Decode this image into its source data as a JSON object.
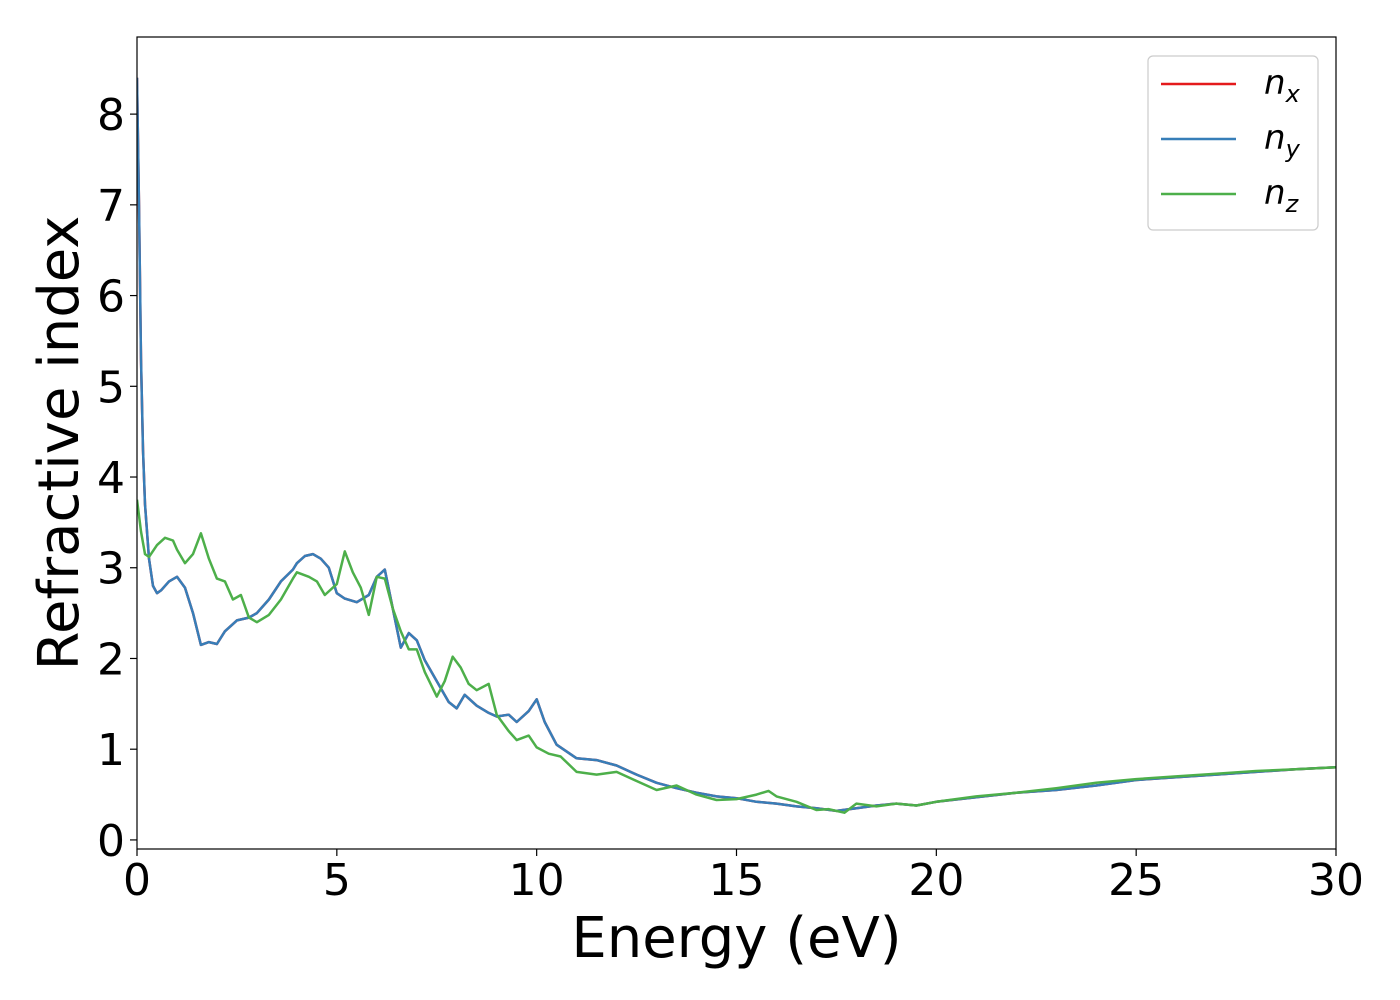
{
  "chart_data": {
    "type": "line",
    "xlabel": "Energy (eV)",
    "ylabel": "Refractive index",
    "xlim": [
      0,
      30
    ],
    "ylim": [
      -0.1,
      8.85
    ],
    "xticks": [
      0,
      5,
      10,
      15,
      20,
      25,
      30
    ],
    "yticks": [
      0,
      1,
      2,
      3,
      4,
      5,
      6,
      7,
      8
    ],
    "grid": false,
    "legend_position": "top-right",
    "series": [
      {
        "name": "n_x",
        "legend_base": "n",
        "legend_sub": "x",
        "color": "#e41a1c",
        "x": [
          0.0,
          0.05,
          0.1,
          0.15,
          0.2,
          0.3,
          0.4,
          0.5,
          0.6,
          0.8,
          1.0,
          1.2,
          1.4,
          1.6,
          1.8,
          2.0,
          2.2,
          2.5,
          2.8,
          3.0,
          3.3,
          3.6,
          3.9,
          4.0,
          4.2,
          4.4,
          4.6,
          4.8,
          5.0,
          5.2,
          5.5,
          5.8,
          6.0,
          6.2,
          6.4,
          6.6,
          6.8,
          7.0,
          7.2,
          7.5,
          7.8,
          8.0,
          8.2,
          8.5,
          8.8,
          9.0,
          9.3,
          9.5,
          9.8,
          10.0,
          10.2,
          10.5,
          11.0,
          11.5,
          12.0,
          12.5,
          13.0,
          13.5,
          14.0,
          14.5,
          15.0,
          15.5,
          16.0,
          16.5,
          17.0,
          17.5,
          18.0,
          18.5,
          19.0,
          19.5,
          20.0,
          21.0,
          22.0,
          23.0,
          24.0,
          25.0,
          26.0,
          27.0,
          28.0,
          29.0,
          30.0
        ],
        "y": [
          8.4,
          7.0,
          5.3,
          4.3,
          3.7,
          3.1,
          2.8,
          2.72,
          2.75,
          2.85,
          2.9,
          2.78,
          2.5,
          2.15,
          2.18,
          2.16,
          2.3,
          2.42,
          2.45,
          2.5,
          2.65,
          2.85,
          2.98,
          3.05,
          3.13,
          3.15,
          3.1,
          3.0,
          2.72,
          2.66,
          2.62,
          2.7,
          2.9,
          2.98,
          2.55,
          2.12,
          2.28,
          2.2,
          1.98,
          1.75,
          1.52,
          1.45,
          1.6,
          1.48,
          1.4,
          1.36,
          1.38,
          1.3,
          1.42,
          1.55,
          1.3,
          1.05,
          0.9,
          0.88,
          0.82,
          0.72,
          0.63,
          0.57,
          0.52,
          0.48,
          0.46,
          0.42,
          0.4,
          0.37,
          0.35,
          0.32,
          0.35,
          0.38,
          0.4,
          0.38,
          0.42,
          0.47,
          0.52,
          0.55,
          0.6,
          0.66,
          0.69,
          0.72,
          0.75,
          0.78,
          0.8
        ]
      },
      {
        "name": "n_y",
        "legend_base": "n",
        "legend_sub": "y",
        "color": "#377eb8",
        "x": [
          0.0,
          0.05,
          0.1,
          0.15,
          0.2,
          0.3,
          0.4,
          0.5,
          0.6,
          0.8,
          1.0,
          1.2,
          1.4,
          1.6,
          1.8,
          2.0,
          2.2,
          2.5,
          2.8,
          3.0,
          3.3,
          3.6,
          3.9,
          4.0,
          4.2,
          4.4,
          4.6,
          4.8,
          5.0,
          5.2,
          5.5,
          5.8,
          6.0,
          6.2,
          6.4,
          6.6,
          6.8,
          7.0,
          7.2,
          7.5,
          7.8,
          8.0,
          8.2,
          8.5,
          8.8,
          9.0,
          9.3,
          9.5,
          9.8,
          10.0,
          10.2,
          10.5,
          11.0,
          11.5,
          12.0,
          12.5,
          13.0,
          13.5,
          14.0,
          14.5,
          15.0,
          15.5,
          16.0,
          16.5,
          17.0,
          17.5,
          18.0,
          18.5,
          19.0,
          19.5,
          20.0,
          21.0,
          22.0,
          23.0,
          24.0,
          25.0,
          26.0,
          27.0,
          28.0,
          29.0,
          30.0
        ],
        "y": [
          8.4,
          7.0,
          5.3,
          4.3,
          3.7,
          3.1,
          2.8,
          2.72,
          2.75,
          2.85,
          2.9,
          2.78,
          2.5,
          2.15,
          2.18,
          2.16,
          2.3,
          2.42,
          2.45,
          2.5,
          2.65,
          2.85,
          2.98,
          3.05,
          3.13,
          3.15,
          3.1,
          3.0,
          2.72,
          2.66,
          2.62,
          2.7,
          2.9,
          2.98,
          2.55,
          2.12,
          2.28,
          2.2,
          1.98,
          1.75,
          1.52,
          1.45,
          1.6,
          1.48,
          1.4,
          1.36,
          1.38,
          1.3,
          1.42,
          1.55,
          1.3,
          1.05,
          0.9,
          0.88,
          0.82,
          0.72,
          0.63,
          0.57,
          0.52,
          0.48,
          0.46,
          0.42,
          0.4,
          0.37,
          0.35,
          0.32,
          0.35,
          0.38,
          0.4,
          0.38,
          0.42,
          0.47,
          0.52,
          0.55,
          0.6,
          0.66,
          0.69,
          0.72,
          0.75,
          0.78,
          0.8
        ]
      },
      {
        "name": "n_z",
        "legend_base": "n",
        "legend_sub": "z",
        "color": "#4daf4a",
        "x": [
          0.0,
          0.1,
          0.2,
          0.3,
          0.5,
          0.7,
          0.9,
          1.0,
          1.2,
          1.4,
          1.6,
          1.8,
          2.0,
          2.2,
          2.4,
          2.6,
          2.8,
          3.0,
          3.3,
          3.6,
          3.9,
          4.0,
          4.3,
          4.5,
          4.7,
          5.0,
          5.2,
          5.4,
          5.6,
          5.8,
          6.0,
          6.2,
          6.4,
          6.6,
          6.8,
          7.0,
          7.2,
          7.5,
          7.7,
          7.9,
          8.1,
          8.3,
          8.5,
          8.8,
          9.0,
          9.3,
          9.5,
          9.8,
          10.0,
          10.3,
          10.6,
          11.0,
          11.5,
          12.0,
          12.5,
          13.0,
          13.5,
          14.0,
          14.5,
          15.0,
          15.5,
          15.8,
          16.0,
          16.5,
          17.0,
          17.3,
          17.7,
          18.0,
          18.5,
          19.0,
          19.5,
          20.0,
          21.0,
          22.0,
          23.0,
          24.0,
          25.0,
          26.0,
          27.0,
          28.0,
          29.0,
          30.0
        ],
        "y": [
          3.75,
          3.4,
          3.15,
          3.12,
          3.25,
          3.33,
          3.3,
          3.2,
          3.05,
          3.15,
          3.38,
          3.1,
          2.88,
          2.85,
          2.65,
          2.7,
          2.45,
          2.4,
          2.48,
          2.65,
          2.88,
          2.95,
          2.9,
          2.85,
          2.7,
          2.82,
          3.18,
          2.95,
          2.78,
          2.48,
          2.9,
          2.88,
          2.55,
          2.3,
          2.1,
          2.1,
          1.85,
          1.58,
          1.75,
          2.02,
          1.9,
          1.72,
          1.65,
          1.72,
          1.38,
          1.2,
          1.1,
          1.15,
          1.02,
          0.95,
          0.92,
          0.75,
          0.72,
          0.75,
          0.65,
          0.55,
          0.6,
          0.5,
          0.44,
          0.45,
          0.5,
          0.54,
          0.48,
          0.42,
          0.33,
          0.34,
          0.3,
          0.4,
          0.37,
          0.4,
          0.38,
          0.42,
          0.48,
          0.52,
          0.57,
          0.63,
          0.67,
          0.7,
          0.73,
          0.76,
          0.78,
          0.8
        ]
      }
    ]
  }
}
